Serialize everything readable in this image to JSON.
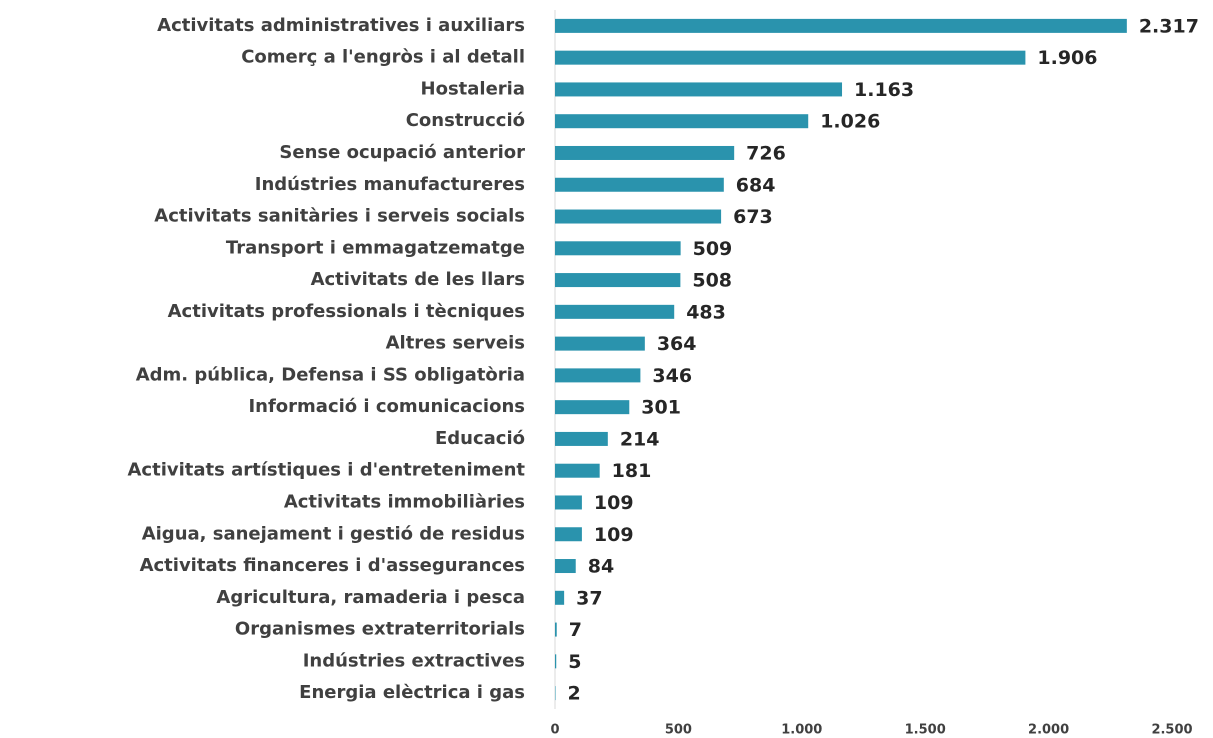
{
  "chart_data": {
    "type": "bar",
    "orientation": "horizontal",
    "categories": [
      "Activitats administratives i auxiliars",
      "Comerç a l'engròs i al detall",
      "Hostaleria",
      "Construcció",
      "Sense ocupació anterior",
      "Indústries manufactureres",
      "Activitats sanitàries i serveis socials",
      "Transport i emmagatzematge",
      "Activitats de les llars",
      "Activitats professionals i tècniques",
      "Altres serveis",
      "Adm. pública, Defensa i SS obligatòria",
      "Informació i comunicacions",
      "Educació",
      "Activitats artístiques i d'entreteniment",
      "Activitats immobiliàries",
      "Aigua, sanejament i gestió de residus",
      "Activitats financeres i d'assegurances",
      "Agricultura, ramaderia i pesca",
      "Organismes extraterritorials",
      "Indústries extractives",
      "Energia elèctrica i gas"
    ],
    "values": [
      2317,
      1906,
      1163,
      1026,
      726,
      684,
      673,
      509,
      508,
      483,
      364,
      346,
      301,
      214,
      181,
      109,
      109,
      84,
      37,
      7,
      5,
      2
    ],
    "value_labels": [
      "2.317",
      "1.906",
      "1.163",
      "1.026",
      "726",
      "684",
      "673",
      "509",
      "508",
      "483",
      "364",
      "346",
      "301",
      "214",
      "181",
      "109",
      "109",
      "84",
      "37",
      "7",
      "5",
      "2"
    ],
    "color": "#2a93ad",
    "xlim": [
      0,
      2500
    ],
    "xticks": [
      0,
      500,
      {
        "value": 1000,
        "label": "1.000"
      },
      {
        "value": 1500,
        "label": "1.500"
      },
      {
        "value": 2000,
        "label": "2.000"
      },
      {
        "value": 2500,
        "label": "2.500"
      }
    ],
    "grid": false
  }
}
